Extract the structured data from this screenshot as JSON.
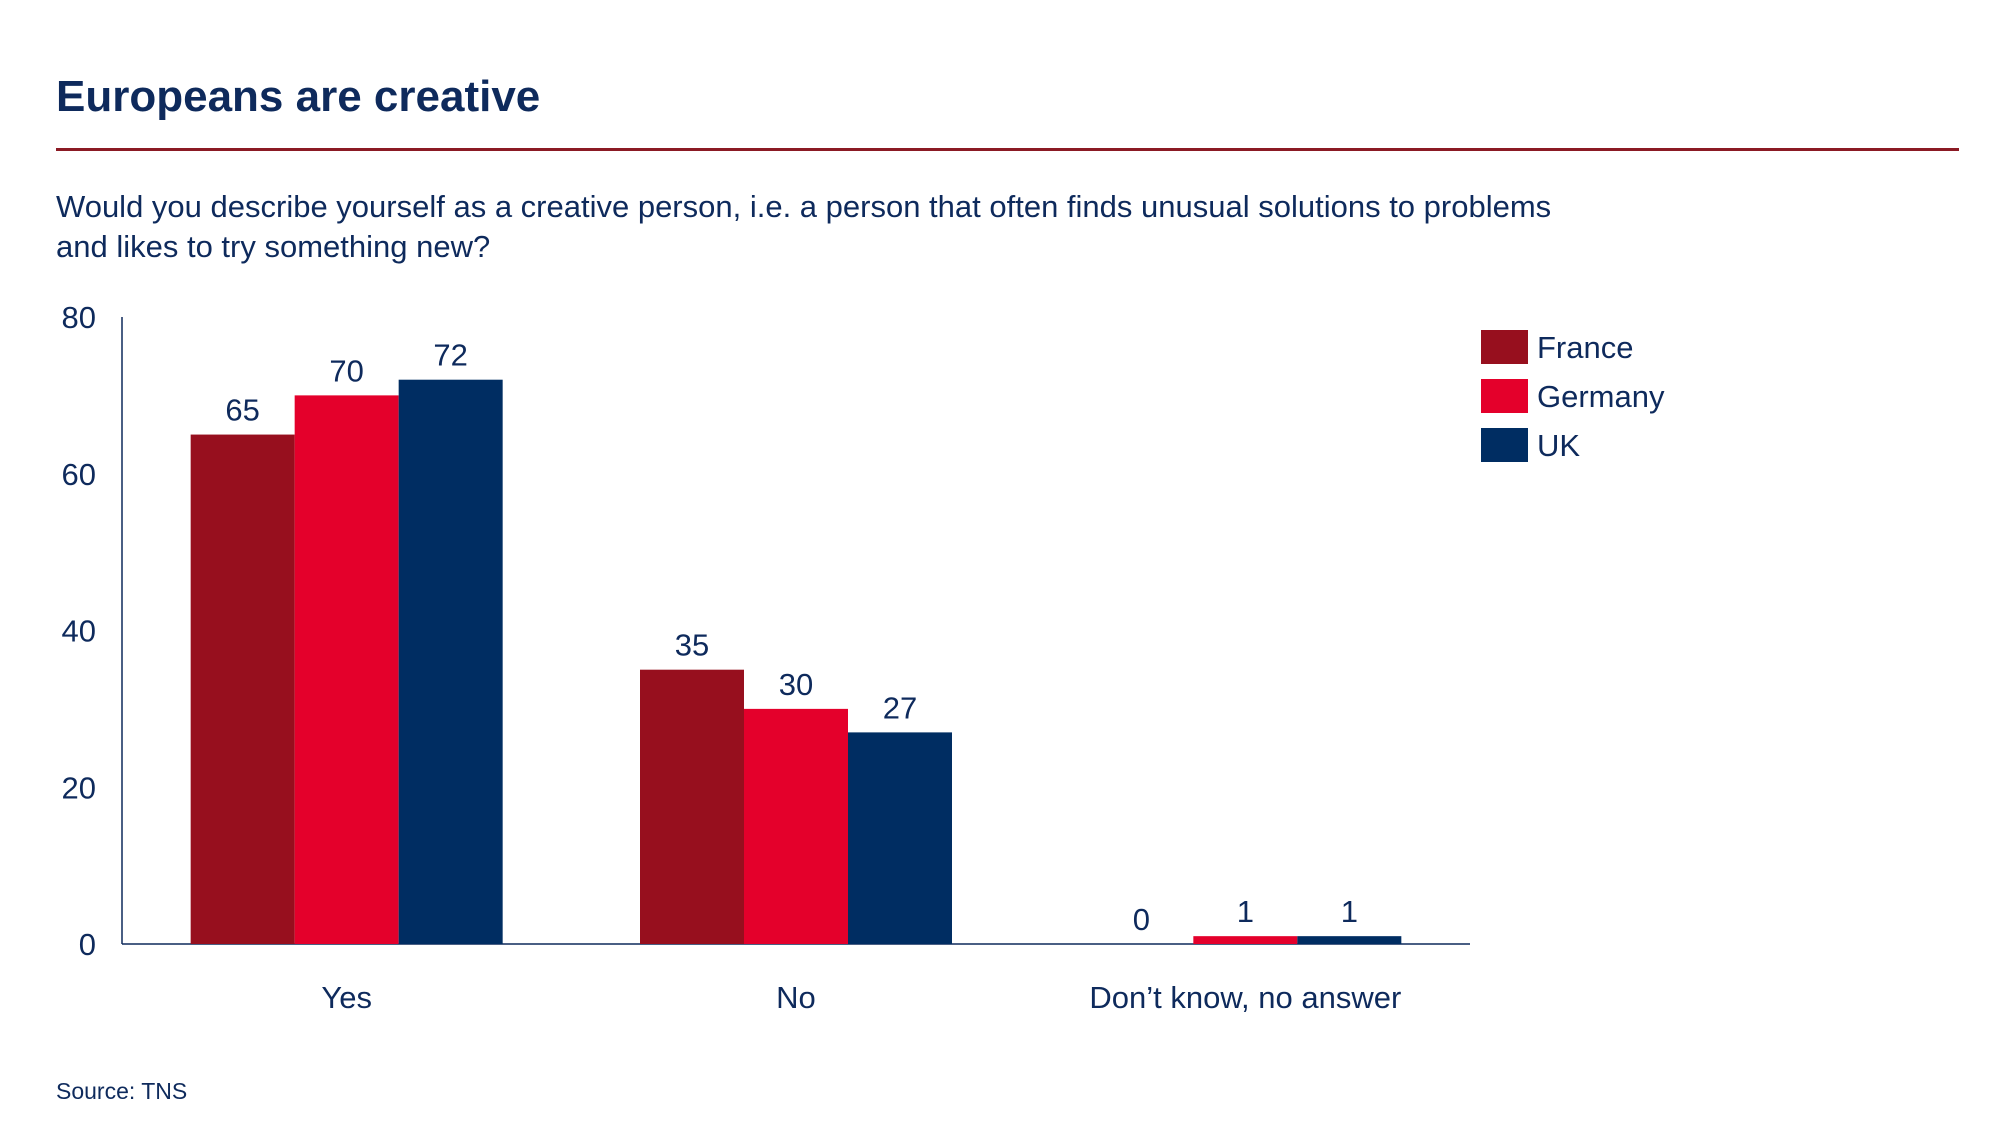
{
  "title": "Europeans are creative",
  "question": "Would you describe yourself as a creative person, i.e. a person that often finds unusual solutions to problems and likes to try something new?",
  "source": "Source: TNS",
  "colors": {
    "text": "#0e2a5c",
    "rule": "#8b1a24",
    "axis": "#0e2a5c"
  },
  "chart_data": {
    "type": "bar",
    "categories": [
      "Yes",
      "No",
      "Don’t know, no answer"
    ],
    "series": [
      {
        "name": "France",
        "color": "#970f1e",
        "values": [
          65,
          35,
          0
        ]
      },
      {
        "name": "Germany",
        "color": "#e4002b",
        "values": [
          70,
          30,
          1
        ]
      },
      {
        "name": "UK",
        "color": "#002d62",
        "values": [
          72,
          27,
          1
        ]
      }
    ],
    "ylim": [
      0,
      80
    ],
    "yticks": [
      0,
      20,
      40,
      60,
      80
    ],
    "xlabel": "",
    "ylabel": "",
    "grid": false,
    "legend": "top-right"
  }
}
